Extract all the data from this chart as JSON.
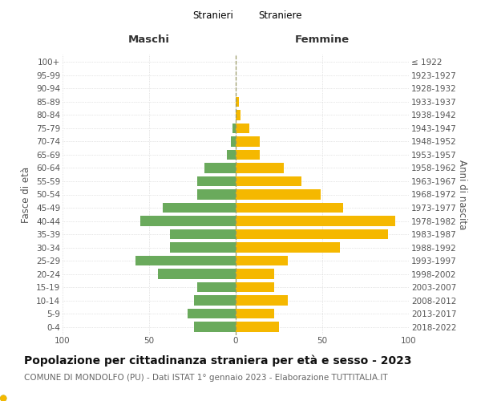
{
  "age_groups": [
    "0-4",
    "5-9",
    "10-14",
    "15-19",
    "20-24",
    "25-29",
    "30-34",
    "35-39",
    "40-44",
    "45-49",
    "50-54",
    "55-59",
    "60-64",
    "65-69",
    "70-74",
    "75-79",
    "80-84",
    "85-89",
    "90-94",
    "95-99",
    "100+"
  ],
  "birth_years": [
    "2018-2022",
    "2013-2017",
    "2008-2012",
    "2003-2007",
    "1998-2002",
    "1993-1997",
    "1988-1992",
    "1983-1987",
    "1978-1982",
    "1973-1977",
    "1968-1972",
    "1963-1967",
    "1958-1962",
    "1953-1957",
    "1948-1952",
    "1943-1947",
    "1938-1942",
    "1933-1937",
    "1928-1932",
    "1923-1927",
    "≤ 1922"
  ],
  "males": [
    24,
    28,
    24,
    22,
    45,
    58,
    38,
    38,
    55,
    42,
    22,
    22,
    18,
    5,
    3,
    2,
    0,
    0,
    0,
    0,
    0
  ],
  "females": [
    25,
    22,
    30,
    22,
    22,
    30,
    60,
    88,
    92,
    62,
    49,
    38,
    28,
    14,
    14,
    8,
    3,
    2,
    0,
    0,
    0
  ],
  "male_color": "#6aaa5c",
  "female_color": "#f5b800",
  "background_color": "#ffffff",
  "grid_color": "#cccccc",
  "dashed_line_color": "#999966",
  "xlim": 100,
  "title": "Popolazione per cittadinanza straniera per età e sesso - 2023",
  "subtitle": "COMUNE DI MONDOLFO (PU) - Dati ISTAT 1° gennaio 2023 - Elaborazione TUTTITALIA.IT",
  "header_left": "Maschi",
  "header_right": "Femmine",
  "ylabel_left": "Fasce di età",
  "ylabel_right": "Anni di nascita",
  "legend_m": "Stranieri",
  "legend_f": "Straniere",
  "title_fontsize": 10,
  "subtitle_fontsize": 7.5,
  "axis_label_fontsize": 8.5,
  "tick_fontsize": 7.5,
  "header_fontsize": 9.5
}
